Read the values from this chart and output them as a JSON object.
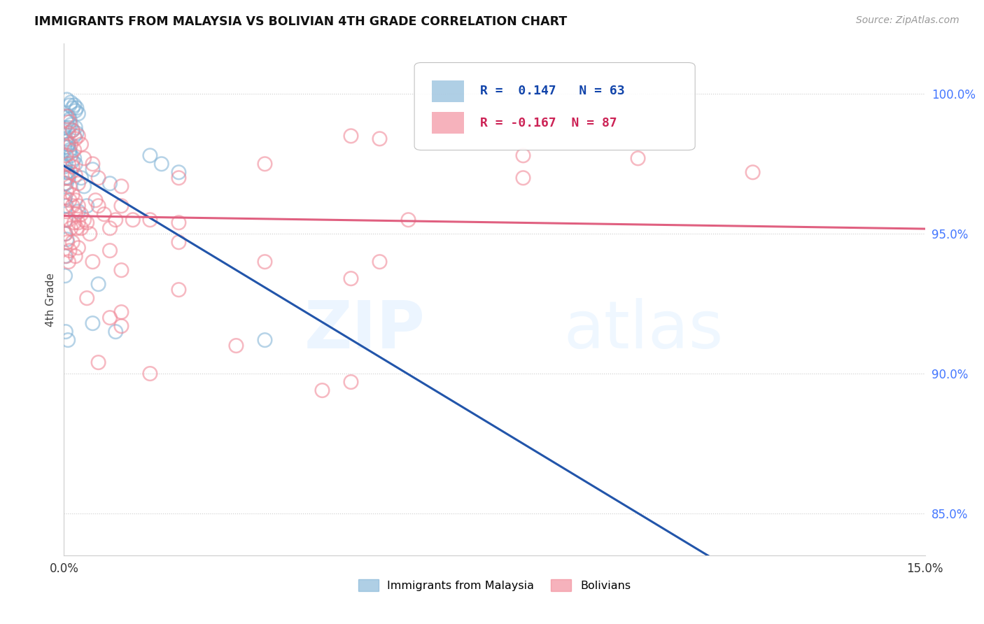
{
  "title": "IMMIGRANTS FROM MALAYSIA VS BOLIVIAN 4TH GRADE CORRELATION CHART",
  "source": "Source: ZipAtlas.com",
  "ylabel": "4th Grade",
  "y_ticks": [
    85.0,
    90.0,
    95.0,
    100.0
  ],
  "x_range": [
    0.0,
    15.0
  ],
  "y_range": [
    83.5,
    101.8
  ],
  "legend_label_blue": "Immigrants from Malaysia",
  "legend_label_pink": "Bolivians",
  "R_blue": 0.147,
  "N_blue": 63,
  "R_pink": -0.167,
  "N_pink": 87,
  "color_blue": "#7BAFD4",
  "color_pink": "#F08090",
  "trendline_blue_color": "#2255AA",
  "trendline_pink_color": "#E06080",
  "background_color": "#FFFFFF",
  "blue_points": [
    [
      0.05,
      99.8
    ],
    [
      0.1,
      99.6
    ],
    [
      0.12,
      99.7
    ],
    [
      0.15,
      99.5
    ],
    [
      0.18,
      99.6
    ],
    [
      0.2,
      99.4
    ],
    [
      0.22,
      99.5
    ],
    [
      0.25,
      99.3
    ],
    [
      0.08,
      99.2
    ],
    [
      0.05,
      99.0
    ],
    [
      0.08,
      98.8
    ],
    [
      0.1,
      99.1
    ],
    [
      0.12,
      98.9
    ],
    [
      0.15,
      98.7
    ],
    [
      0.18,
      98.5
    ],
    [
      0.2,
      98.8
    ],
    [
      0.22,
      98.6
    ],
    [
      0.03,
      98.4
    ],
    [
      0.06,
      98.1
    ],
    [
      0.08,
      98.2
    ],
    [
      0.1,
      98.0
    ],
    [
      0.12,
      97.8
    ],
    [
      0.15,
      97.6
    ],
    [
      0.18,
      97.7
    ],
    [
      0.04,
      98.3
    ],
    [
      0.07,
      98.2
    ],
    [
      0.1,
      97.9
    ],
    [
      0.05,
      97.2
    ],
    [
      0.08,
      97.0
    ],
    [
      0.03,
      97.5
    ],
    [
      0.06,
      97.2
    ],
    [
      0.02,
      97.0
    ],
    [
      0.04,
      96.8
    ],
    [
      0.02,
      96.3
    ],
    [
      0.04,
      96.0
    ],
    [
      0.03,
      95.5
    ],
    [
      0.02,
      95.0
    ],
    [
      0.05,
      94.8
    ],
    [
      0.02,
      94.2
    ],
    [
      0.02,
      93.5
    ],
    [
      0.03,
      91.5
    ],
    [
      0.07,
      91.2
    ],
    [
      0.01,
      98.8
    ],
    [
      0.01,
      98.1
    ],
    [
      0.01,
      97.4
    ],
    [
      0.01,
      96.8
    ],
    [
      0.01,
      96.2
    ],
    [
      0.2,
      97.5
    ],
    [
      0.3,
      97.0
    ],
    [
      0.25,
      95.8
    ],
    [
      0.35,
      96.7
    ],
    [
      1.5,
      97.8
    ],
    [
      1.7,
      97.5
    ],
    [
      0.5,
      97.3
    ],
    [
      0.8,
      96.8
    ],
    [
      0.4,
      96.0
    ],
    [
      0.6,
      93.2
    ],
    [
      0.5,
      91.8
    ],
    [
      0.9,
      91.5
    ],
    [
      2.0,
      97.2
    ],
    [
      3.5,
      91.2
    ]
  ],
  "pink_points": [
    [
      0.05,
      99.2
    ],
    [
      0.1,
      99.0
    ],
    [
      0.15,
      98.7
    ],
    [
      0.2,
      98.4
    ],
    [
      0.08,
      98.6
    ],
    [
      0.12,
      98.2
    ],
    [
      0.18,
      98.0
    ],
    [
      0.25,
      98.5
    ],
    [
      0.3,
      98.2
    ],
    [
      0.35,
      97.7
    ],
    [
      0.04,
      97.8
    ],
    [
      0.08,
      97.5
    ],
    [
      0.12,
      97.2
    ],
    [
      0.15,
      97.4
    ],
    [
      0.2,
      97.1
    ],
    [
      0.25,
      96.8
    ],
    [
      0.05,
      97.0
    ],
    [
      0.1,
      96.7
    ],
    [
      0.15,
      96.4
    ],
    [
      0.2,
      96.2
    ],
    [
      0.25,
      96.0
    ],
    [
      0.3,
      95.7
    ],
    [
      0.04,
      95.8
    ],
    [
      0.08,
      95.5
    ],
    [
      0.12,
      95.2
    ],
    [
      0.18,
      95.4
    ],
    [
      0.22,
      95.2
    ],
    [
      0.03,
      95.0
    ],
    [
      0.06,
      94.7
    ],
    [
      0.1,
      94.4
    ],
    [
      0.15,
      94.7
    ],
    [
      0.2,
      94.2
    ],
    [
      0.25,
      94.5
    ],
    [
      0.04,
      94.2
    ],
    [
      0.08,
      94.0
    ],
    [
      0.05,
      96.5
    ],
    [
      0.1,
      96.2
    ],
    [
      0.15,
      96.0
    ],
    [
      0.2,
      95.7
    ],
    [
      0.25,
      95.4
    ],
    [
      0.3,
      95.2
    ],
    [
      0.35,
      95.5
    ],
    [
      0.4,
      95.4
    ],
    [
      0.45,
      95.0
    ],
    [
      0.5,
      97.5
    ],
    [
      0.55,
      96.2
    ],
    [
      0.6,
      96.0
    ],
    [
      0.7,
      95.7
    ],
    [
      0.8,
      95.2
    ],
    [
      0.9,
      95.5
    ],
    [
      1.0,
      96.0
    ],
    [
      1.2,
      95.5
    ],
    [
      1.5,
      95.5
    ],
    [
      2.0,
      95.4
    ],
    [
      0.6,
      97.0
    ],
    [
      0.8,
      94.4
    ],
    [
      1.0,
      96.7
    ],
    [
      2.0,
      97.0
    ],
    [
      3.5,
      97.5
    ],
    [
      5.0,
      98.5
    ],
    [
      5.5,
      98.4
    ],
    [
      8.0,
      97.8
    ],
    [
      10.0,
      97.7
    ],
    [
      0.5,
      94.0
    ],
    [
      1.0,
      93.7
    ],
    [
      2.0,
      94.7
    ],
    [
      3.5,
      94.0
    ],
    [
      5.0,
      93.4
    ],
    [
      6.0,
      95.5
    ],
    [
      0.4,
      92.7
    ],
    [
      1.0,
      92.2
    ],
    [
      2.0,
      93.0
    ],
    [
      5.5,
      94.0
    ],
    [
      0.8,
      92.0
    ],
    [
      1.0,
      91.7
    ],
    [
      3.0,
      91.0
    ],
    [
      5.0,
      89.7
    ],
    [
      0.6,
      90.4
    ],
    [
      1.5,
      90.0
    ],
    [
      4.5,
      89.4
    ],
    [
      8.0,
      97.0
    ],
    [
      12.0,
      97.2
    ]
  ]
}
